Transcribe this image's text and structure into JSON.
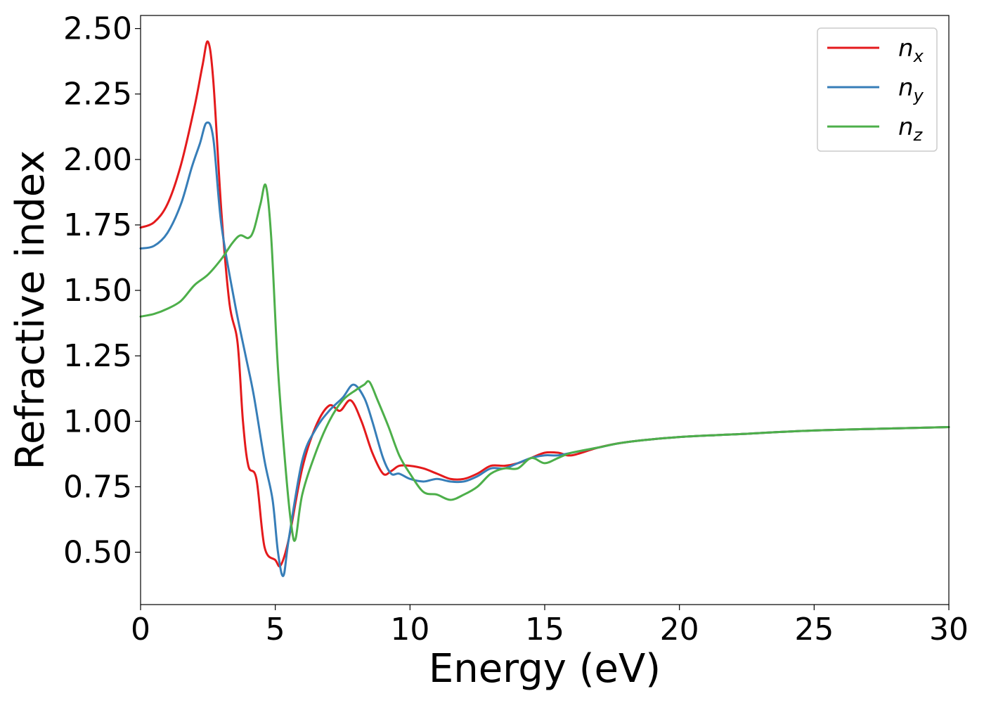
{
  "chart_data": {
    "type": "line",
    "title": "",
    "xlabel": "Energy (eV)",
    "ylabel": "Refractive index",
    "xlim": [
      0,
      30
    ],
    "ylim": [
      0.3,
      2.55
    ],
    "xticks": [
      0,
      5,
      10,
      15,
      20,
      25,
      30
    ],
    "xtick_labels": [
      "0",
      "5",
      "10",
      "15",
      "20",
      "25",
      "30"
    ],
    "yticks": [
      0.5,
      0.75,
      1.0,
      1.25,
      1.5,
      1.75,
      2.0,
      2.25,
      2.5
    ],
    "ytick_labels": [
      "0.50",
      "0.75",
      "1.00",
      "1.25",
      "1.50",
      "1.75",
      "2.00",
      "2.25",
      "2.50"
    ],
    "grid": false,
    "legend_position": "top-right",
    "series": [
      {
        "name": "n_x",
        "legend_base": "n",
        "legend_sub": "x",
        "color": "#e41a1c",
        "x": [
          0,
          0.5,
          1.0,
          1.5,
          2.0,
          2.3,
          2.5,
          2.7,
          3.0,
          3.3,
          3.6,
          3.8,
          4.0,
          4.3,
          4.6,
          5.0,
          5.2,
          5.5,
          6.0,
          6.5,
          7.0,
          7.4,
          7.8,
          8.2,
          8.6,
          9.0,
          9.3,
          9.6,
          10.0,
          10.5,
          11.0,
          11.5,
          12.0,
          12.5,
          13.0,
          13.5,
          14.0,
          14.5,
          15.0,
          15.5,
          16.0,
          17.0,
          18.0,
          20.0,
          22.0,
          25.0,
          28.0,
          30.0
        ],
        "y": [
          1.74,
          1.76,
          1.83,
          1.98,
          2.2,
          2.36,
          2.45,
          2.3,
          1.8,
          1.45,
          1.3,
          1.0,
          0.83,
          0.78,
          0.52,
          0.47,
          0.45,
          0.55,
          0.82,
          0.98,
          1.06,
          1.04,
          1.08,
          1.0,
          0.88,
          0.8,
          0.81,
          0.83,
          0.83,
          0.82,
          0.8,
          0.78,
          0.78,
          0.8,
          0.83,
          0.83,
          0.84,
          0.86,
          0.88,
          0.88,
          0.87,
          0.9,
          0.92,
          0.94,
          0.95,
          0.965,
          0.973,
          0.978
        ]
      },
      {
        "name": "n_y",
        "legend_base": "n",
        "legend_sub": "y",
        "color": "#377eb8",
        "x": [
          0,
          0.5,
          1.0,
          1.5,
          1.9,
          2.2,
          2.45,
          2.7,
          3.0,
          3.5,
          3.9,
          4.2,
          4.6,
          4.9,
          5.1,
          5.3,
          5.5,
          6.0,
          6.5,
          7.0,
          7.5,
          7.9,
          8.3,
          8.6,
          9.0,
          9.3,
          9.6,
          10.0,
          10.5,
          11.0,
          11.5,
          12.0,
          12.5,
          13.0,
          13.5,
          14.0,
          14.5,
          15.0,
          15.5,
          16.0,
          17.0,
          18.0,
          20.0,
          22.0,
          25.0,
          28.0,
          30.0
        ],
        "y": [
          1.66,
          1.67,
          1.72,
          1.83,
          1.97,
          2.06,
          2.14,
          2.08,
          1.75,
          1.45,
          1.25,
          1.1,
          0.85,
          0.7,
          0.5,
          0.41,
          0.55,
          0.85,
          0.97,
          1.04,
          1.09,
          1.14,
          1.09,
          1.0,
          0.86,
          0.8,
          0.8,
          0.78,
          0.77,
          0.78,
          0.77,
          0.77,
          0.79,
          0.82,
          0.82,
          0.84,
          0.86,
          0.87,
          0.87,
          0.88,
          0.9,
          0.92,
          0.94,
          0.95,
          0.965,
          0.973,
          0.978
        ]
      },
      {
        "name": "n_z",
        "legend_base": "n",
        "legend_sub": "z",
        "color": "#4daf4a",
        "x": [
          0,
          0.5,
          1.0,
          1.5,
          2.0,
          2.5,
          3.0,
          3.4,
          3.7,
          4.0,
          4.2,
          4.45,
          4.65,
          4.85,
          5.1,
          5.4,
          5.6,
          5.75,
          6.0,
          6.5,
          7.0,
          7.5,
          8.0,
          8.3,
          8.5,
          8.8,
          9.2,
          9.6,
          10.0,
          10.5,
          11.0,
          11.5,
          12.0,
          12.5,
          13.0,
          13.5,
          14.0,
          14.5,
          15.0,
          15.5,
          16.0,
          17.0,
          18.0,
          20.0,
          22.0,
          25.0,
          28.0,
          30.0
        ],
        "y": [
          1.4,
          1.41,
          1.43,
          1.46,
          1.52,
          1.56,
          1.62,
          1.68,
          1.71,
          1.7,
          1.73,
          1.83,
          1.9,
          1.7,
          1.2,
          0.8,
          0.6,
          0.55,
          0.72,
          0.88,
          1.0,
          1.08,
          1.12,
          1.14,
          1.15,
          1.08,
          0.98,
          0.87,
          0.8,
          0.73,
          0.72,
          0.7,
          0.72,
          0.75,
          0.8,
          0.82,
          0.82,
          0.86,
          0.84,
          0.86,
          0.88,
          0.9,
          0.92,
          0.94,
          0.95,
          0.965,
          0.973,
          0.978
        ]
      }
    ]
  }
}
